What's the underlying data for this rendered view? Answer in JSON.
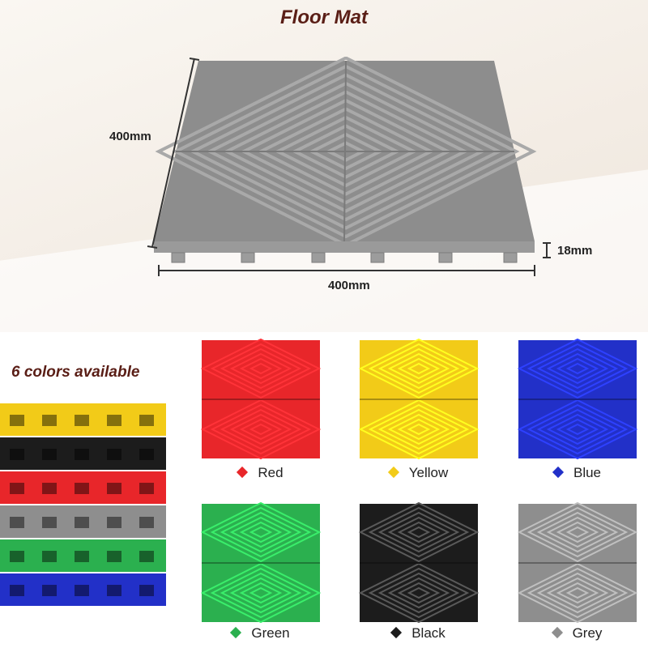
{
  "header": {
    "title": "Floor Mat"
  },
  "dimensions": {
    "width": "400mm",
    "length": "400mm",
    "thickness": "18mm"
  },
  "colors_section": {
    "title": "6 colors available",
    "swatches": [
      {
        "label": "Red",
        "color": "#e8262a"
      },
      {
        "label": "Yellow",
        "color": "#f2cb18"
      },
      {
        "label": "Blue",
        "color": "#2230c8"
      },
      {
        "label": "Green",
        "color": "#2bb04f"
      },
      {
        "label": "Black",
        "color": "#1c1c1c"
      },
      {
        "label": "Grey",
        "color": "#8e8e8e"
      }
    ],
    "stack_order": [
      "#f2cb18",
      "#1c1c1c",
      "#e8262a",
      "#8e8e8e",
      "#2bb04f",
      "#2230c8"
    ]
  }
}
